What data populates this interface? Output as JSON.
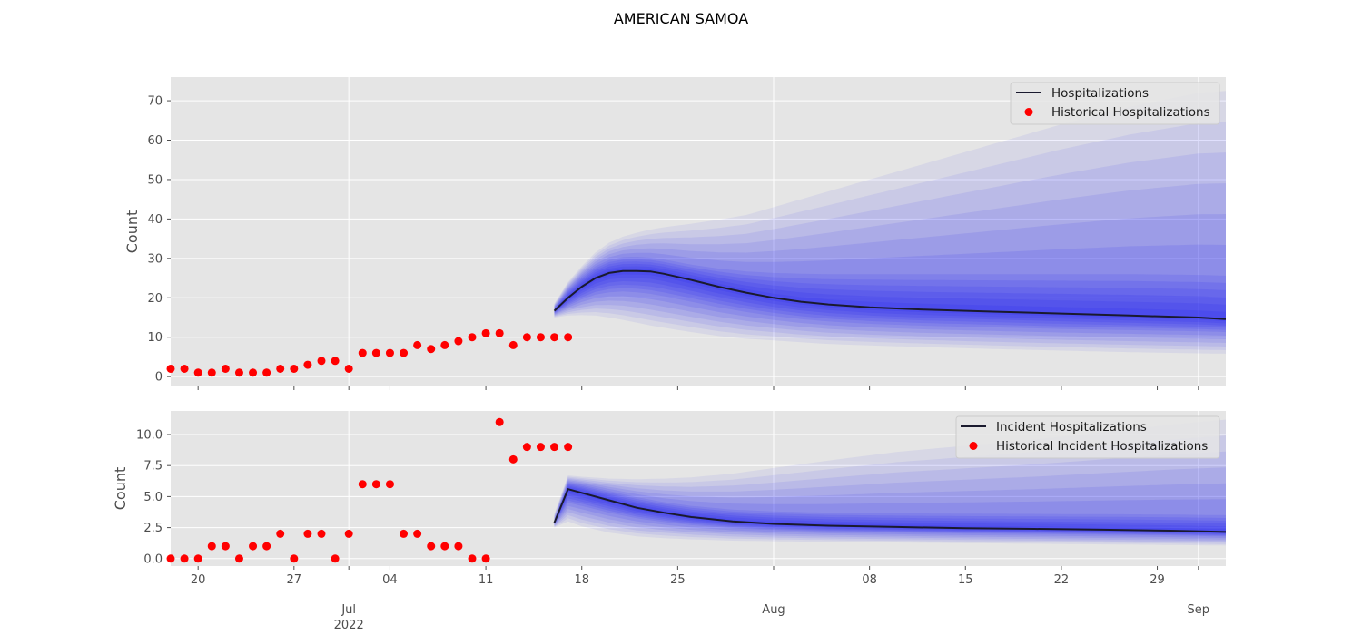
{
  "figure": {
    "title": "AMERICAN SAMOA"
  },
  "style": {
    "plot_bg": "#e5e5e5",
    "grid": "#ffffff",
    "band_color": "#2f2ff0",
    "median_color": "#1a1a2e",
    "history_color": "#ff0000"
  },
  "x_axis": {
    "range": [
      "2022-06-18",
      "2022-09-03"
    ],
    "major_ticks": [
      {
        "date": "2022-07-01",
        "label": "Jul",
        "sublabel": "2022"
      },
      {
        "date": "2022-08-01",
        "label": "Aug",
        "sublabel": ""
      },
      {
        "date": "2022-09-01",
        "label": "Sep",
        "sublabel": ""
      }
    ],
    "minor_ticks": [
      {
        "date": "2022-06-20",
        "label": "20"
      },
      {
        "date": "2022-06-27",
        "label": "27"
      },
      {
        "date": "2022-07-04",
        "label": "04"
      },
      {
        "date": "2022-07-11",
        "label": "11"
      },
      {
        "date": "2022-07-18",
        "label": "18"
      },
      {
        "date": "2022-07-25",
        "label": "25"
      },
      {
        "date": "2022-08-08",
        "label": "08"
      },
      {
        "date": "2022-08-15",
        "label": "15"
      },
      {
        "date": "2022-08-22",
        "label": "22"
      },
      {
        "date": "2022-08-29",
        "label": "29"
      }
    ]
  },
  "chart_data": [
    {
      "type": "line",
      "ylabel": "Count",
      "ylim": [
        -2.5,
        76
      ],
      "yticks": [
        0,
        10,
        20,
        30,
        40,
        50,
        60,
        70
      ],
      "ytick_labels": [
        "0",
        "10",
        "20",
        "30",
        "40",
        "50",
        "60",
        "70"
      ],
      "grid": true,
      "legend_position": "top-right",
      "legend": [
        "Hospitalizations",
        "Historical Hospitalizations"
      ],
      "history": {
        "name": "Historical Hospitalizations",
        "x": [
          "2022-06-18",
          "2022-06-19",
          "2022-06-20",
          "2022-06-21",
          "2022-06-22",
          "2022-06-23",
          "2022-06-24",
          "2022-06-25",
          "2022-06-26",
          "2022-06-27",
          "2022-06-28",
          "2022-06-29",
          "2022-06-30",
          "2022-07-01",
          "2022-07-02",
          "2022-07-03",
          "2022-07-04",
          "2022-07-05",
          "2022-07-06",
          "2022-07-07",
          "2022-07-08",
          "2022-07-09",
          "2022-07-10",
          "2022-07-11",
          "2022-07-12",
          "2022-07-13",
          "2022-07-14",
          "2022-07-15",
          "2022-07-16",
          "2022-07-17"
        ],
        "y": [
          2,
          2,
          1,
          1,
          2,
          1,
          1,
          1,
          2,
          2,
          3,
          4,
          4,
          2,
          6,
          6,
          6,
          6,
          8,
          7,
          8,
          9,
          10,
          11,
          11,
          8,
          10,
          10,
          10,
          10
        ]
      },
      "forecast": {
        "name": "Hospitalizations",
        "x": [
          "2022-07-16",
          "2022-07-17",
          "2022-07-18",
          "2022-07-19",
          "2022-07-20",
          "2022-07-21",
          "2022-07-22",
          "2022-07-23",
          "2022-07-24",
          "2022-07-26",
          "2022-07-28",
          "2022-07-30",
          "2022-08-01",
          "2022-08-03",
          "2022-08-05",
          "2022-08-08",
          "2022-08-12",
          "2022-08-17",
          "2022-08-22",
          "2022-08-27",
          "2022-09-01",
          "2022-09-03"
        ],
        "median": [
          16.7,
          20.0,
          22.8,
          25.0,
          26.3,
          26.8,
          26.8,
          26.7,
          26.1,
          24.5,
          22.8,
          21.3,
          20.0,
          19.0,
          18.3,
          17.6,
          17.0,
          16.5,
          16.0,
          15.5,
          15.0,
          14.6
        ],
        "lower_90": [
          15.0,
          15.5,
          15.6,
          15.5,
          15.0,
          14.4,
          13.7,
          13.0,
          12.4,
          11.3,
          10.3,
          9.6,
          9.2,
          8.7,
          8.3,
          7.9,
          7.5,
          7.0,
          6.6,
          6.2,
          5.9,
          5.8
        ],
        "upper_90": [
          18.5,
          24.0,
          28.0,
          31.5,
          34.0,
          35.5,
          36.5,
          37.3,
          37.9,
          38.8,
          39.8,
          41.0,
          43.0,
          45.0,
          47.0,
          50.0,
          54.0,
          59.0,
          64.0,
          68.5,
          72.0,
          72.5
        ],
        "lower_50": [
          16.0,
          18.0,
          19.6,
          20.8,
          21.4,
          21.6,
          21.4,
          21.0,
          20.4,
          19.0,
          17.6,
          16.4,
          15.4,
          14.6,
          14.0,
          13.4,
          12.9,
          12.5,
          12.1,
          11.8,
          11.5,
          11.3
        ],
        "upper_50": [
          17.5,
          22.0,
          25.4,
          28.0,
          29.6,
          30.3,
          30.4,
          30.2,
          29.7,
          28.4,
          27.4,
          26.7,
          26.3,
          26.1,
          26.0,
          26.0,
          26.0,
          26.0,
          26.0,
          26.0,
          25.8,
          25.6
        ]
      }
    },
    {
      "type": "line",
      "ylabel": "Count",
      "ylim": [
        -0.6,
        11.9
      ],
      "yticks": [
        0,
        2.5,
        5,
        7.5,
        10
      ],
      "ytick_labels": [
        "0.0",
        "2.5",
        "5.0",
        "7.5",
        "10.0"
      ],
      "grid": true,
      "legend_position": "top-right",
      "legend": [
        "Incident Hospitalizations",
        "Historical Incident Hospitalizations"
      ],
      "history": {
        "name": "Historical Incident Hospitalizations",
        "x": [
          "2022-06-18",
          "2022-06-19",
          "2022-06-20",
          "2022-06-21",
          "2022-06-22",
          "2022-06-23",
          "2022-06-24",
          "2022-06-25",
          "2022-06-26",
          "2022-06-27",
          "2022-06-28",
          "2022-06-29",
          "2022-06-30",
          "2022-07-01",
          "2022-07-02",
          "2022-07-03",
          "2022-07-04",
          "2022-07-05",
          "2022-07-06",
          "2022-07-07",
          "2022-07-08",
          "2022-07-09",
          "2022-07-10",
          "2022-07-11",
          "2022-07-12",
          "2022-07-13",
          "2022-07-14",
          "2022-07-15",
          "2022-07-16",
          "2022-07-17"
        ],
        "y": [
          0,
          0,
          0,
          1,
          1,
          0,
          1,
          1,
          2,
          0,
          2,
          2,
          0,
          2,
          6,
          6,
          6,
          2,
          2,
          1,
          1,
          1,
          0,
          0,
          11,
          8,
          9,
          9,
          9,
          9
        ]
      },
      "forecast": {
        "name": "Incident Hospitalizations",
        "x": [
          "2022-07-16",
          "2022-07-17",
          "2022-07-18",
          "2022-07-20",
          "2022-07-22",
          "2022-07-24",
          "2022-07-26",
          "2022-07-29",
          "2022-08-01",
          "2022-08-05",
          "2022-08-10",
          "2022-08-15",
          "2022-08-20",
          "2022-08-25",
          "2022-08-30",
          "2022-09-03"
        ],
        "median": [
          2.9,
          5.6,
          5.3,
          4.7,
          4.1,
          3.7,
          3.35,
          3.0,
          2.8,
          2.65,
          2.55,
          2.45,
          2.4,
          2.33,
          2.25,
          2.15
        ],
        "lower_90": [
          2.5,
          3.0,
          2.6,
          2.1,
          1.8,
          1.65,
          1.55,
          1.45,
          1.4,
          1.35,
          1.3,
          1.25,
          1.2,
          1.15,
          1.1,
          1.05
        ],
        "upper_90": [
          3.6,
          6.7,
          6.6,
          6.45,
          6.4,
          6.45,
          6.55,
          6.85,
          7.3,
          7.9,
          8.6,
          9.1,
          9.6,
          10.2,
          10.8,
          11.2
        ],
        "lower_50": [
          2.75,
          4.5,
          4.25,
          3.7,
          3.25,
          2.95,
          2.7,
          2.45,
          2.3,
          2.18,
          2.1,
          2.02,
          1.98,
          1.92,
          1.86,
          1.78
        ],
        "upper_50": [
          3.1,
          6.15,
          5.95,
          5.45,
          4.95,
          4.55,
          4.25,
          3.95,
          3.8,
          3.7,
          3.65,
          3.62,
          3.6,
          3.58,
          3.55,
          3.5
        ]
      }
    }
  ]
}
